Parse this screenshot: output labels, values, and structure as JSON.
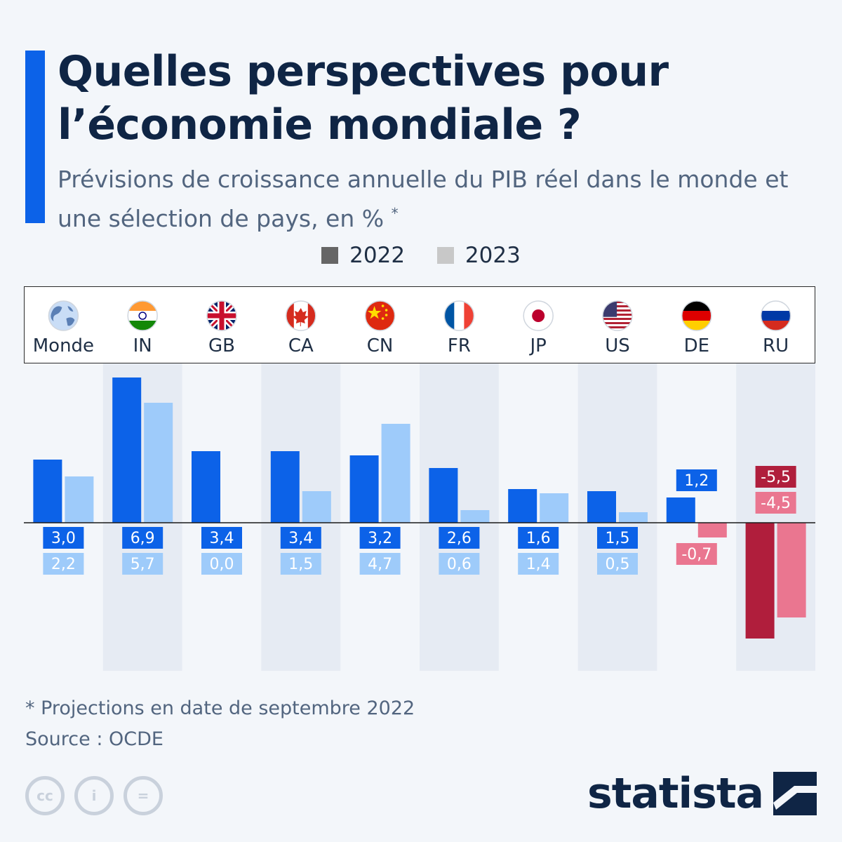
{
  "title": "Quelles perspectives pour l’économie mondiale ?",
  "subtitle": "Prévisions de croissance annuelle du PIB réel dans le monde et une sélection de pays, en %",
  "subtitle_mark": "*",
  "legend": [
    {
      "label": "2022",
      "color": "#666666"
    },
    {
      "label": "2023",
      "color": "#c8c8c8"
    }
  ],
  "colors": {
    "positive_2022": "#0c62e8",
    "positive_2023": "#9ecbfa",
    "negative_2022": "#b01e3c",
    "negative_2023": "#ea7690",
    "stripe": "#e6ebf3"
  },
  "chart_data": {
    "type": "bar",
    "categories": [
      "Monde",
      "IN",
      "GB",
      "CA",
      "CN",
      "FR",
      "JP",
      "US",
      "DE",
      "RU"
    ],
    "category_icons": [
      "globe-icon",
      "india-flag-icon",
      "uk-flag-icon",
      "canada-flag-icon",
      "china-flag-icon",
      "france-flag-icon",
      "japan-flag-icon",
      "usa-flag-icon",
      "germany-flag-icon",
      "russia-flag-icon"
    ],
    "series": [
      {
        "name": "2022",
        "values": [
          3.0,
          6.9,
          3.4,
          3.4,
          3.2,
          2.6,
          1.6,
          1.5,
          1.2,
          -5.5
        ],
        "labels": [
          "3,0",
          "6,9",
          "3,4",
          "3,4",
          "3,2",
          "2,6",
          "1,6",
          "1,5",
          "1,2",
          "-5,5"
        ]
      },
      {
        "name": "2023",
        "values": [
          2.2,
          5.7,
          0.0,
          1.5,
          4.7,
          0.6,
          1.4,
          0.5,
          -0.7,
          -4.5
        ],
        "labels": [
          "2,2",
          "5,7",
          "0,0",
          "1,5",
          "4,7",
          "0,6",
          "1,4",
          "0,5",
          "-0,7",
          "-4,5"
        ]
      }
    ],
    "ylim": [
      -7,
      7.3
    ],
    "grid": false,
    "legend_position": "top-center"
  },
  "footnote": "* Projections en date de septembre 2022",
  "source": "Source : OCDE",
  "license_icons": [
    "cc-icon",
    "attribution-icon",
    "no-derivatives-icon"
  ],
  "license_glyphs": [
    "cc",
    "i",
    "="
  ],
  "brand": "statista"
}
